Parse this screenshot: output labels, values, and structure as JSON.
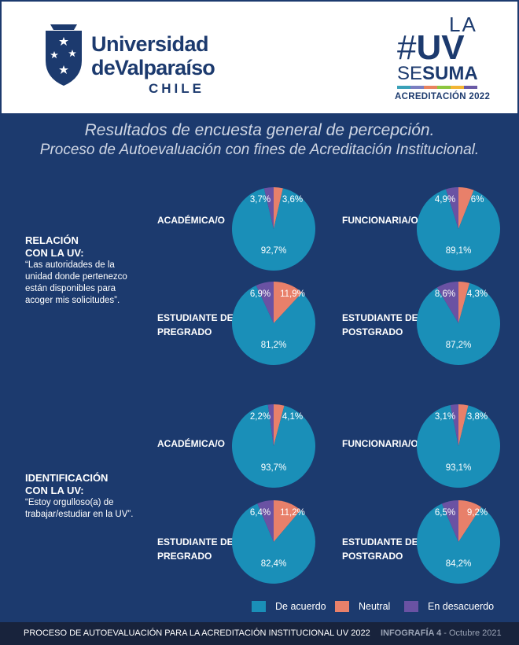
{
  "header": {
    "university_line1": "Universidad",
    "university_line2": "deValparaíso",
    "university_line3": "CHILE",
    "campaign_la": "LA",
    "campaign_hash": "#",
    "campaign_uv": "UV",
    "campaign_se": "SE",
    "campaign_suma": "SUMA",
    "campaign_acreditacion": "ACREDITACIÓN 2022",
    "colorbar": [
      "#3aa1b8",
      "#7b7fc1",
      "#e8835e",
      "#8dc63f",
      "#f2b535",
      "#6a5aa6"
    ]
  },
  "title_line1": "Resultados de encuesta general de percepción.",
  "title_line2": "Proceso de Autoevaluación con fines de Acreditación Institucional.",
  "sections": [
    {
      "heading_line1": "RELACIÓN",
      "heading_line2": "CON LA UV:",
      "question": "“Las autoridades de la unidad donde pertenezco están disponibles para acoger mis solicitudes”."
    },
    {
      "heading_line1": "IDENTIFICACIÓN",
      "heading_line2": "CON LA UV:",
      "question": "“Estoy orgulloso(a) de trabajar/estudiar en la UV”."
    }
  ],
  "groups": {
    "academica": "ACADÉMICA/O",
    "funcionaria": "FUNCIONARIA/O",
    "pregrado_l1": "ESTUDIANTE DE",
    "pregrado_l2": "PREGRADO",
    "postgrado_l1": "ESTUDIANTE DE",
    "postgrado_l2": "POSTGRADO"
  },
  "chart_data": [
    {
      "type": "pie",
      "section": "RELACIÓN CON LA UV",
      "group": "ACADÉMICA/O",
      "slices": [
        {
          "label": "De acuerdo",
          "value": 92.7,
          "text": "92,7%"
        },
        {
          "label": "Neutral",
          "value": 3.6,
          "text": "3,6%"
        },
        {
          "label": "En desacuerdo",
          "value": 3.7,
          "text": "3,7%"
        }
      ]
    },
    {
      "type": "pie",
      "section": "RELACIÓN CON LA UV",
      "group": "FUNCIONARIA/O",
      "slices": [
        {
          "label": "De acuerdo",
          "value": 89.1,
          "text": "89,1%"
        },
        {
          "label": "Neutral",
          "value": 6,
          "text": "6%"
        },
        {
          "label": "En desacuerdo",
          "value": 4.9,
          "text": "4,9%"
        }
      ]
    },
    {
      "type": "pie",
      "section": "RELACIÓN CON LA UV",
      "group": "ESTUDIANTE DE PREGRADO",
      "slices": [
        {
          "label": "De acuerdo",
          "value": 81.2,
          "text": "81,2%"
        },
        {
          "label": "Neutral",
          "value": 11.9,
          "text": "11,9%"
        },
        {
          "label": "En desacuerdo",
          "value": 6.9,
          "text": "6,9%"
        }
      ]
    },
    {
      "type": "pie",
      "section": "RELACIÓN CON LA UV",
      "group": "ESTUDIANTE DE POSTGRADO",
      "slices": [
        {
          "label": "De acuerdo",
          "value": 87.2,
          "text": "87,2%"
        },
        {
          "label": "Neutral",
          "value": 4.3,
          "text": "4,3%"
        },
        {
          "label": "En desacuerdo",
          "value": 8.6,
          "text": "8,6%"
        }
      ]
    },
    {
      "type": "pie",
      "section": "IDENTIFICACIÓN CON LA UV",
      "group": "ACADÉMICA/O",
      "slices": [
        {
          "label": "De acuerdo",
          "value": 93.7,
          "text": "93,7%"
        },
        {
          "label": "Neutral",
          "value": 4.1,
          "text": "4,1%"
        },
        {
          "label": "En desacuerdo",
          "value": 2.2,
          "text": "2,2%"
        }
      ]
    },
    {
      "type": "pie",
      "section": "IDENTIFICACIÓN CON LA UV",
      "group": "FUNCIONARIA/O",
      "slices": [
        {
          "label": "De acuerdo",
          "value": 93.1,
          "text": "93,1%"
        },
        {
          "label": "Neutral",
          "value": 3.8,
          "text": "3,8%"
        },
        {
          "label": "En desacuerdo",
          "value": 3.1,
          "text": "3,1%"
        }
      ]
    },
    {
      "type": "pie",
      "section": "IDENTIFICACIÓN CON LA UV",
      "group": "ESTUDIANTE DE PREGRADO",
      "slices": [
        {
          "label": "De acuerdo",
          "value": 82.4,
          "text": "82,4%"
        },
        {
          "label": "Neutral",
          "value": 11.2,
          "text": "11,2%"
        },
        {
          "label": "En desacuerdo",
          "value": 6.4,
          "text": "6,4%"
        }
      ]
    },
    {
      "type": "pie",
      "section": "IDENTIFICACIÓN CON LA UV",
      "group": "ESTUDIANTE DE POSTGRADO",
      "slices": [
        {
          "label": "De acuerdo",
          "value": 84.2,
          "text": "84,2%"
        },
        {
          "label": "Neutral",
          "value": 9.2,
          "text": "9,2%"
        },
        {
          "label": "En desacuerdo",
          "value": 6.5,
          "text": "6,5%"
        }
      ]
    }
  ],
  "legend": [
    {
      "label": "De acuerdo",
      "color": "#1a8fb8"
    },
    {
      "label": "Neutral",
      "color": "#e8806a"
    },
    {
      "label": "En desacuerdo",
      "color": "#6a52a3"
    }
  ],
  "footer": {
    "left": "PROCESO DE AUTOEVALUACIÓN PARA LA ACREDITACIÓN INSTITUCIONAL UV 2022",
    "right_bold": "INFOGRAFÍA 4",
    "right_rest": " - Octubre 2021"
  }
}
